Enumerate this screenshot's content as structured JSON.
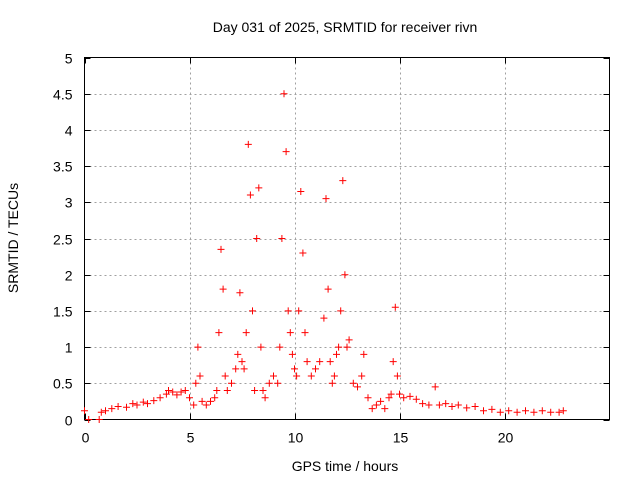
{
  "chart_data": {
    "type": "scatter",
    "title": "Day 031 of 2025, SRMTID for receiver rivn",
    "xlabel": "GPS time / hours",
    "ylabel": "SRMTID / TECUs",
    "xlim": [
      0,
      25
    ],
    "ylim": [
      0,
      5
    ],
    "xticks": [
      0,
      5,
      10,
      15,
      20
    ],
    "xtick_labels": [
      "0",
      "5",
      "10",
      "15",
      "20"
    ],
    "yticks": [
      0,
      0.5,
      1,
      1.5,
      2,
      2.5,
      3,
      3.5,
      4,
      4.5,
      5
    ],
    "ytick_labels": [
      "0",
      "0.5",
      "1",
      "1.5",
      "2",
      "2.5",
      "3",
      "3.5",
      "4",
      "4.5",
      "5"
    ],
    "grid": true,
    "marker": "+",
    "colors": {
      "series": "#ff0000",
      "grid": "#a0a0a0",
      "axis": "#000000"
    },
    "series": [
      {
        "name": "SRMTID",
        "x": [
          0.0,
          0.2,
          0.7,
          0.8,
          1.0,
          1.3,
          1.6,
          2.0,
          2.3,
          2.5,
          2.8,
          3.0,
          3.3,
          3.6,
          3.9,
          4.0,
          4.2,
          4.4,
          4.6,
          4.8,
          5.0,
          5.2,
          5.3,
          5.4,
          5.5,
          5.6,
          5.8,
          6.0,
          6.2,
          6.3,
          6.4,
          6.5,
          6.6,
          6.7,
          6.8,
          7.0,
          7.2,
          7.3,
          7.4,
          7.5,
          7.6,
          7.7,
          7.8,
          7.9,
          8.0,
          8.1,
          8.2,
          8.3,
          8.4,
          8.5,
          8.6,
          8.8,
          9.0,
          9.2,
          9.3,
          9.4,
          9.5,
          9.6,
          9.7,
          9.8,
          9.9,
          10.0,
          10.1,
          10.2,
          10.3,
          10.4,
          10.5,
          10.6,
          10.8,
          11.0,
          11.2,
          11.4,
          11.5,
          11.6,
          11.7,
          11.8,
          11.9,
          12.0,
          12.1,
          12.2,
          12.3,
          12.4,
          12.5,
          12.6,
          12.8,
          13.0,
          13.2,
          13.3,
          13.5,
          13.7,
          13.9,
          14.1,
          14.3,
          14.5,
          14.6,
          14.7,
          14.8,
          14.9,
          15.0,
          15.2,
          15.5,
          15.8,
          16.1,
          16.4,
          16.7,
          16.9,
          17.2,
          17.5,
          17.8,
          18.2,
          18.6,
          19.0,
          19.4,
          19.8,
          20.2,
          20.6,
          21.0,
          21.4,
          21.8,
          22.2,
          22.6,
          22.8
        ],
        "y": [
          0.12,
          0.0,
          0.0,
          0.1,
          0.12,
          0.15,
          0.18,
          0.17,
          0.22,
          0.2,
          0.24,
          0.22,
          0.26,
          0.3,
          0.35,
          0.4,
          0.38,
          0.34,
          0.38,
          0.4,
          0.3,
          0.2,
          0.5,
          1.0,
          0.6,
          0.25,
          0.2,
          0.25,
          0.3,
          0.4,
          1.2,
          2.35,
          1.8,
          0.6,
          0.4,
          0.5,
          0.7,
          0.9,
          1.75,
          0.8,
          0.7,
          1.2,
          3.8,
          3.1,
          1.5,
          0.4,
          2.5,
          3.2,
          1.0,
          0.4,
          0.3,
          0.5,
          0.6,
          0.5,
          1.0,
          2.5,
          4.5,
          3.7,
          1.5,
          1.2,
          0.9,
          0.7,
          0.6,
          1.5,
          3.15,
          2.3,
          1.2,
          0.8,
          0.6,
          0.7,
          0.8,
          1.4,
          3.05,
          1.8,
          0.8,
          0.5,
          0.6,
          0.9,
          1.0,
          1.5,
          3.3,
          2.0,
          1.0,
          1.1,
          0.5,
          0.45,
          0.6,
          0.9,
          0.3,
          0.15,
          0.2,
          0.25,
          0.15,
          0.3,
          0.35,
          0.8,
          1.55,
          0.6,
          0.35,
          0.3,
          0.32,
          0.28,
          0.22,
          0.2,
          0.45,
          0.2,
          0.22,
          0.18,
          0.2,
          0.16,
          0.18,
          0.12,
          0.14,
          0.1,
          0.12,
          0.1,
          0.12,
          0.1,
          0.12,
          0.1,
          0.1,
          0.12
        ]
      }
    ]
  }
}
